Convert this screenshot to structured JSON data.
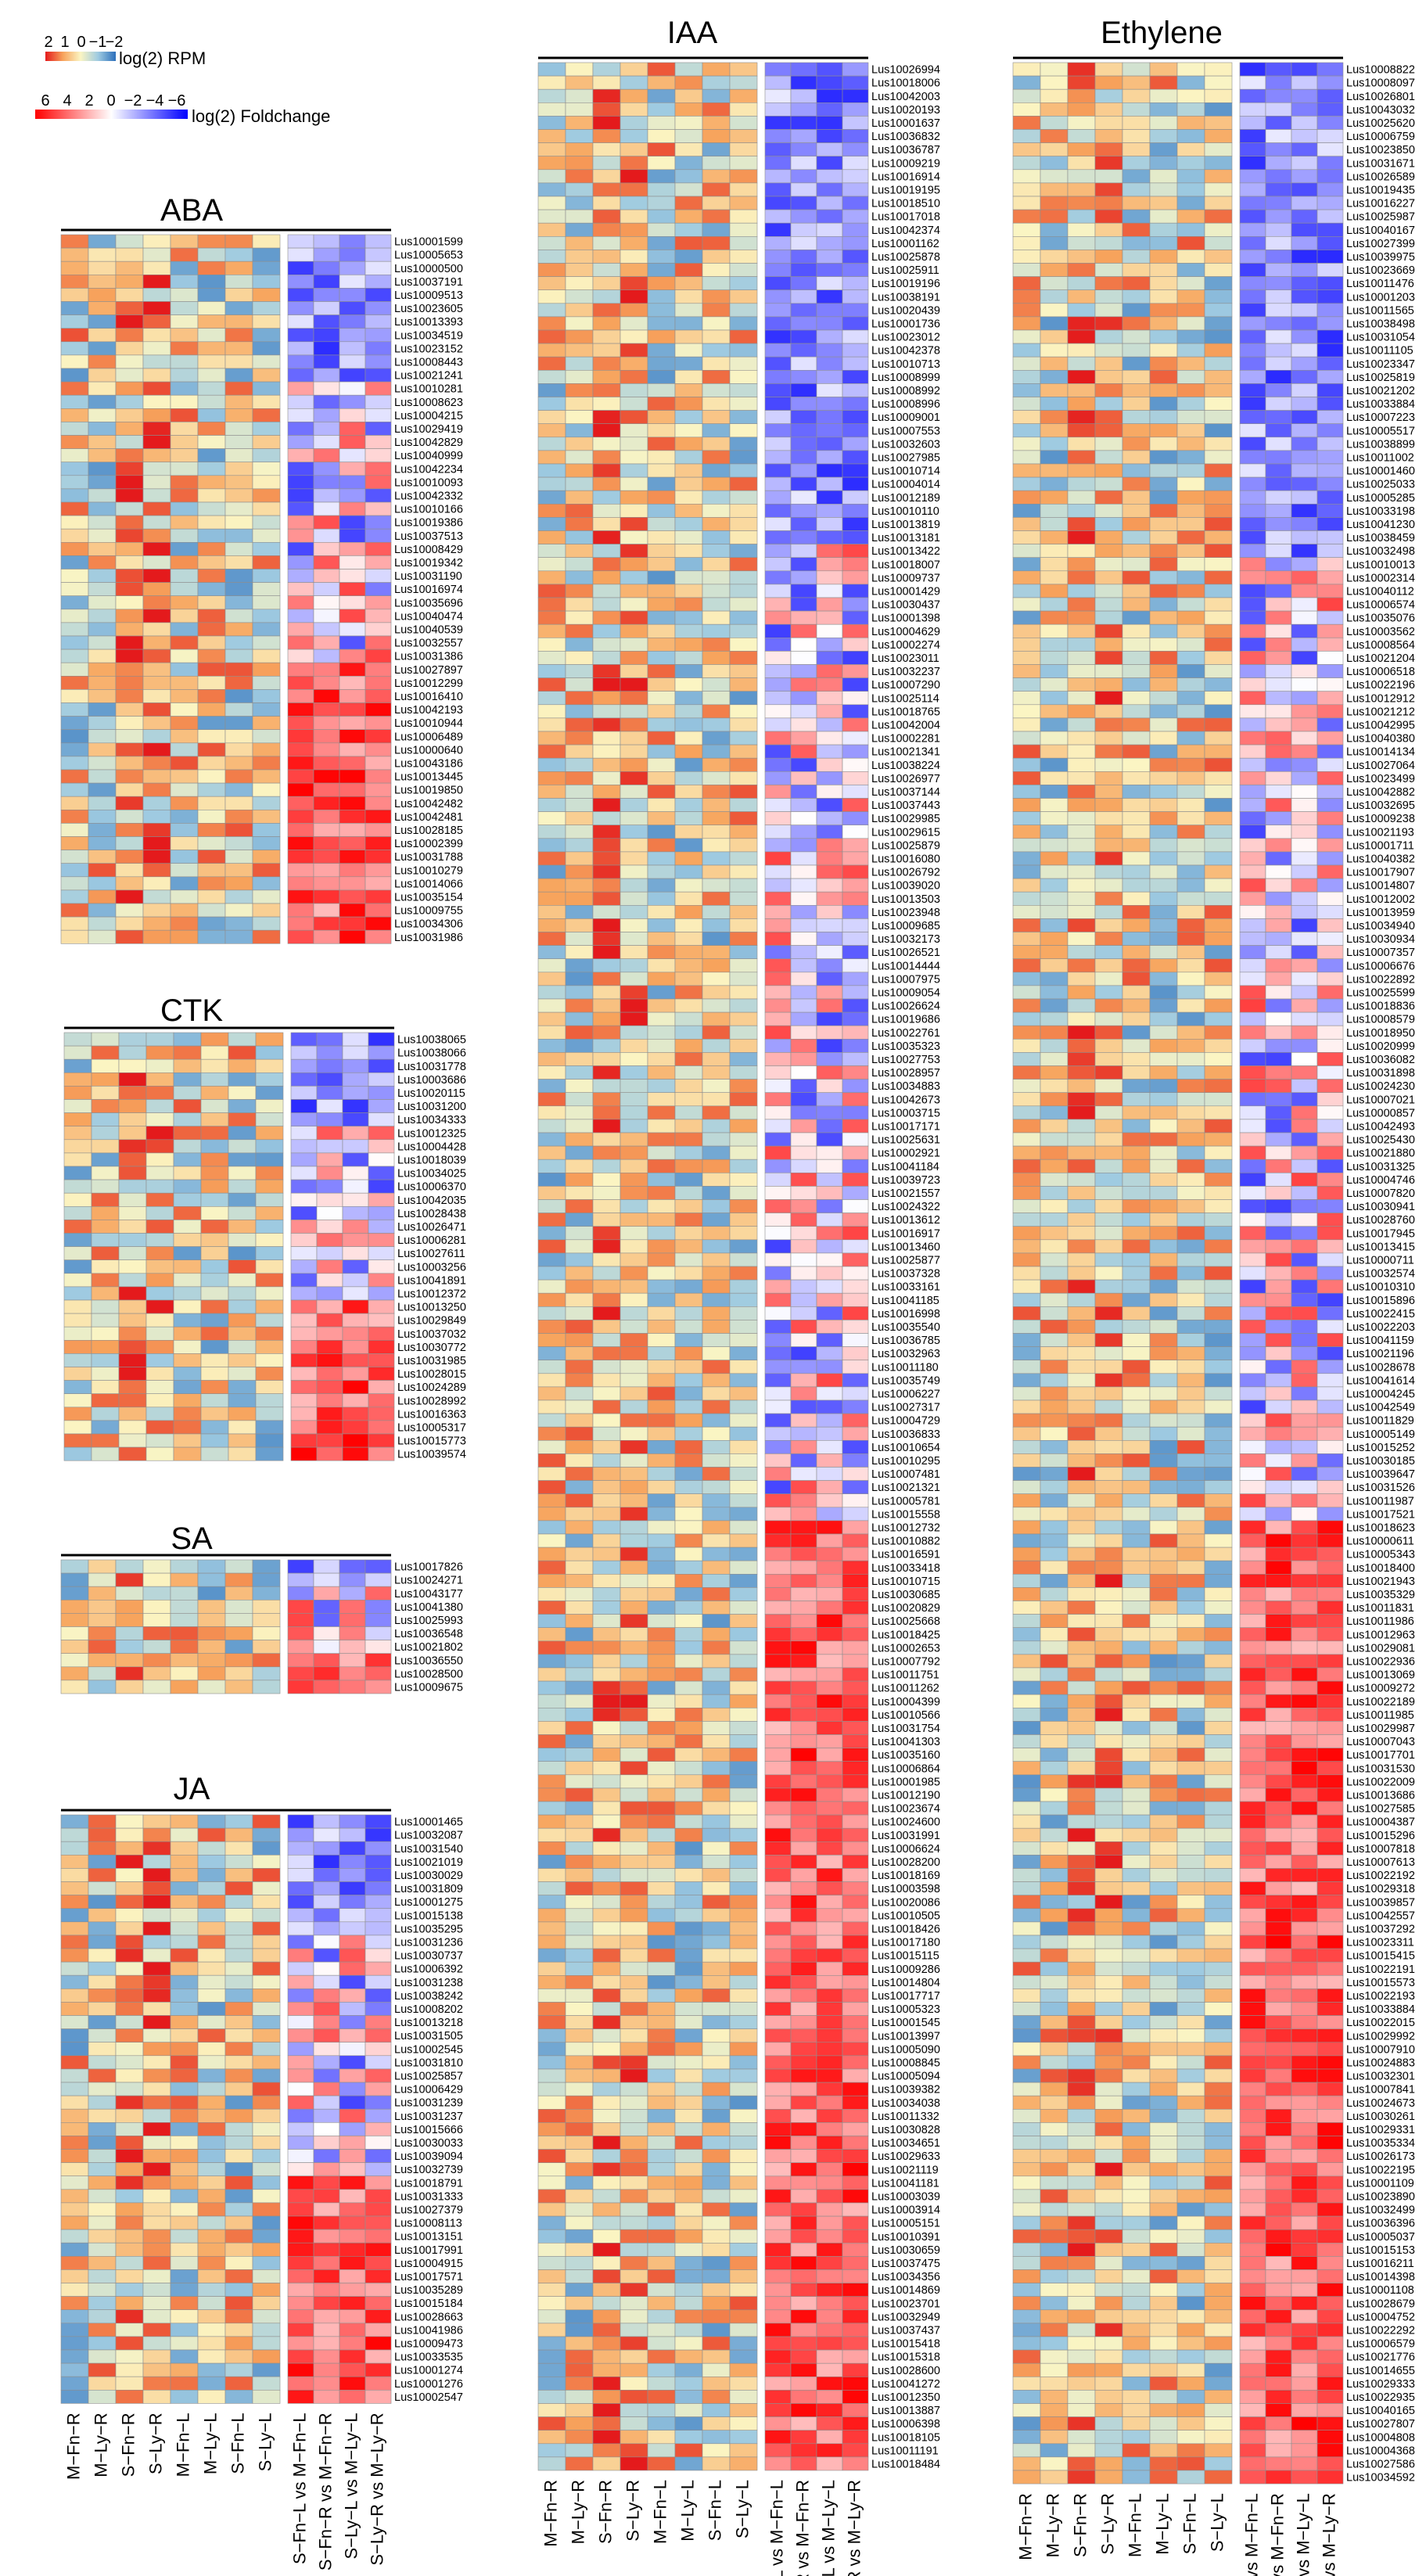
{
  "legend": {
    "rpm": {
      "ticks": [
        "2",
        "1",
        "0",
        "−1",
        "−2"
      ],
      "label": "log(2) RPM"
    },
    "foldchange": {
      "ticks": [
        "6",
        "4",
        "2",
        "0",
        "−2",
        "−4",
        "−6"
      ],
      "label": "log(2) Foldchange"
    }
  },
  "chart_data": [
    {
      "type": "heatmap",
      "title": "ABA",
      "expression_columns": [
        "M−Fn−R",
        "M−Ly−R",
        "S−Fn−R",
        "S−Ly−R",
        "M−Fn−L",
        "M−Ly−L",
        "S−Fn−L",
        "S−Ly−L"
      ],
      "foldchange_columns": [
        "S−Fn−L vs M−Fn−L",
        "S−Fn−R vs M−Fn−R",
        "S−Ly−L vs M−Ly−L",
        "S−Ly−R vs M−Ly−R"
      ],
      "rows": [
        "Lus10001599",
        "Lus10005653",
        "Lus10000500",
        "Lus10037191",
        "Lus10009513",
        "Lus10023605",
        "Lus10013393",
        "Lus10034519",
        "Lus10023152",
        "Lus10008443",
        "Lus10021241",
        "Lus10010281",
        "Lus10008623",
        "Lus10004215",
        "Lus10029419",
        "Lus10042829",
        "Lus10040999",
        "Lus10042234",
        "Lus10010093",
        "Lus10042332",
        "Lus10010166",
        "Lus10019386",
        "Lus10037513",
        "Lus10008429",
        "Lus10019342",
        "Lus10031190",
        "Lus10016974",
        "Lus10035696",
        "Lus10040474",
        "Lus10040539",
        "Lus10032557",
        "Lus10031386",
        "Lus10027897",
        "Lus10012299",
        "Lus10016410",
        "Lus10042193",
        "Lus10010944",
        "Lus10006489",
        "Lus10000640",
        "Lus10043186",
        "Lus10013445",
        "Lus10019850",
        "Lus10042482",
        "Lus10042481",
        "Lus10028185",
        "Lus10002399",
        "Lus10031788",
        "Lus10010279",
        "Lus10014066",
        "Lus10035154",
        "Lus10009755",
        "Lus10034306",
        "Lus10031986"
      ]
    },
    {
      "type": "heatmap",
      "title": "CTK",
      "expression_columns": [
        "M−Fn−R",
        "M−Ly−R",
        "S−Fn−R",
        "S−Ly−R",
        "M−Fn−L",
        "M−Ly−L",
        "S−Fn−L",
        "S−Ly−L"
      ],
      "foldchange_columns": [
        "S−Fn−L vs M−Fn−L",
        "S−Fn−R vs M−Fn−R",
        "S−Ly−L vs M−Ly−L",
        "S−Ly−R vs M−Ly−R"
      ],
      "rows": [
        "Lus10038065",
        "Lus10038066",
        "Lus10031778",
        "Lus10003686",
        "Lus10020115",
        "Lus10031200",
        "Lus10034333",
        "Lus10012325",
        "Lus10004428",
        "Lus10018039",
        "Lus10034025",
        "Lus10006370",
        "Lus10042035",
        "Lus10028438",
        "Lus10026471",
        "Lus10006281",
        "Lus10027611",
        "Lus10003256",
        "Lus10041891",
        "Lus10012372",
        "Lus10013250",
        "Lus10029849",
        "Lus10037032",
        "Lus10030772",
        "Lus10031985",
        "Lus10028015",
        "Lus10024289",
        "Lus10028992",
        "Lus10016363",
        "Lus10005317",
        "Lus10015773",
        "Lus10039574"
      ]
    },
    {
      "type": "heatmap",
      "title": "SA",
      "expression_columns": [
        "M−Fn−R",
        "M−Ly−R",
        "S−Fn−R",
        "S−Ly−R",
        "M−Fn−L",
        "M−Ly−L",
        "S−Fn−L",
        "S−Ly−L"
      ],
      "foldchange_columns": [
        "S−Fn−L vs M−Fn−L",
        "S−Fn−R vs M−Fn−R",
        "S−Ly−L vs M−Ly−L",
        "S−Ly−R vs M−Ly−R"
      ],
      "rows": [
        "Lus10017826",
        "Lus10024271",
        "Lus10043177",
        "Lus10041380",
        "Lus10025993",
        "Lus10036548",
        "Lus10021802",
        "Lus10036550",
        "Lus10028500",
        "Lus10009675"
      ]
    },
    {
      "type": "heatmap",
      "title": "JA",
      "expression_columns": [
        "M−Fn−R",
        "M−Ly−R",
        "S−Fn−R",
        "S−Ly−R",
        "M−Fn−L",
        "M−Ly−L",
        "S−Fn−L",
        "S−Ly−L"
      ],
      "foldchange_columns": [
        "S−Fn−L vs M−Fn−L",
        "S−Fn−R vs M−Fn−R",
        "S−Ly−L vs M−Ly−L",
        "S−Ly−R vs M−Ly−R"
      ],
      "rows": [
        "Lus10001465",
        "Lus10032087",
        "Lus10031540",
        "Lus10021019",
        "Lus10030029",
        "Lus10031809",
        "Lus10001275",
        "Lus10015138",
        "Lus10035295",
        "Lus10031236",
        "Lus10030737",
        "Lus10006392",
        "Lus10031238",
        "Lus10038242",
        "Lus10008202",
        "Lus10013218",
        "Lus10031505",
        "Lus10002545",
        "Lus10031810",
        "Lus10025857",
        "Lus10006429",
        "Lus10031239",
        "Lus10031237",
        "Lus10015666",
        "Lus10030033",
        "Lus10039094",
        "Lus10032739",
        "Lus10018791",
        "Lus10031333",
        "Lus10027379",
        "Lus10008113",
        "Lus10013151",
        "Lus10017991",
        "Lus10004915",
        "Lus10017571",
        "Lus10035289",
        "Lus10015184",
        "Lus10028663",
        "Lus10041986",
        "Lus10009473",
        "Lus10033535",
        "Lus10001274",
        "Lus10001276",
        "Lus10002547"
      ]
    },
    {
      "type": "heatmap",
      "title": "IAA",
      "expression_columns": [
        "M−Fn−R",
        "M−Ly−R",
        "S−Fn−R",
        "S−Ly−R",
        "M−Fn−L",
        "M−Ly−L",
        "S−Fn−L",
        "S−Ly−L"
      ],
      "foldchange_columns": [
        "S−Fn−L vs M−Fn−L",
        "S−Fn−R vs M−Fn−R",
        "S−Ly−L vs M−Ly−L",
        "S−Ly−R vs M−Ly−R"
      ],
      "rows": [
        "Lus10026994",
        "Lus10018006",
        "Lus10042003",
        "Lus10020193",
        "Lus10001637",
        "Lus10036832",
        "Lus10036787",
        "Lus10009219",
        "Lus10016914",
        "Lus10019195",
        "Lus10018510",
        "Lus10017018",
        "Lus10042374",
        "Lus10001162",
        "Lus10025878",
        "Lus10025911",
        "Lus10019196",
        "Lus10038191",
        "Lus10020439",
        "Lus10001736",
        "Lus10023012",
        "Lus10042378",
        "Lus10010713",
        "Lus10008999",
        "Lus10008992",
        "Lus10008996",
        "Lus10009001",
        "Lus10007553",
        "Lus10032603",
        "Lus10027985",
        "Lus10010714",
        "Lus10004014",
        "Lus10012189",
        "Lus10010110",
        "Lus10013819",
        "Lus10013181",
        "Lus10013422",
        "Lus10018007",
        "Lus10009737",
        "Lus10001429",
        "Lus10030437",
        "Lus10001398",
        "Lus10004629",
        "Lus10002274",
        "Lus10023011",
        "Lus10032237",
        "Lus10007290",
        "Lus10025114",
        "Lus10018765",
        "Lus10042004",
        "Lus10002281",
        "Lus10021341",
        "Lus10038224",
        "Lus10026977",
        "Lus10037144",
        "Lus10037443",
        "Lus10029985",
        "Lus10029615",
        "Lus10025879",
        "Lus10016080",
        "Lus10026792",
        "Lus10039020",
        "Lus10013503",
        "Lus10023948",
        "Lus10009685",
        "Lus10032173",
        "Lus10026521",
        "Lus10014444",
        "Lus10007975",
        "Lus10009054",
        "Lus10026624",
        "Lus10019686",
        "Lus10022761",
        "Lus10035323",
        "Lus10027753",
        "Lus10028957",
        "Lus10034883",
        "Lus10042673",
        "Lus10003715",
        "Lus10017171",
        "Lus10025631",
        "Lus10002921",
        "Lus10041184",
        "Lus10039723",
        "Lus10021557",
        "Lus10024322",
        "Lus10013612",
        "Lus10016917",
        "Lus10013460",
        "Lus10025877",
        "Lus10037328",
        "Lus10033161",
        "Lus10041185",
        "Lus10016998",
        "Lus10035540",
        "Lus10036785",
        "Lus10032963",
        "Lus10011180",
        "Lus10035749",
        "Lus10006227",
        "Lus10027317",
        "Lus10004729",
        "Lus10036833",
        "Lus10010654",
        "Lus10010295",
        "Lus10007481",
        "Lus10021321",
        "Lus10005781",
        "Lus10015558",
        "Lus10012732",
        "Lus10010882",
        "Lus10016591",
        "Lus10033418",
        "Lus10010715",
        "Lus10030685",
        "Lus10020829",
        "Lus10025668",
        "Lus10018425",
        "Lus10002653",
        "Lus10007792",
        "Lus10011751",
        "Lus10011262",
        "Lus10004399",
        "Lus10010566",
        "Lus10031754",
        "Lus10041303",
        "Lus10035160",
        "Lus10006864",
        "Lus10001985",
        "Lus10012190",
        "Lus10023674",
        "Lus10024600",
        "Lus10031991",
        "Lus10006624",
        "Lus10028200",
        "Lus10018169",
        "Lus10003598",
        "Lus10020086",
        "Lus10010505",
        "Lus10018426",
        "Lus10017180",
        "Lus10015115",
        "Lus10009286",
        "Lus10014804",
        "Lus10017717",
        "Lus10005323",
        "Lus10001545",
        "Lus10013997",
        "Lus10005090",
        "Lus10008845",
        "Lus10005094",
        "Lus10039382",
        "Lus10034038",
        "Lus10011332",
        "Lus10030828",
        "Lus10034651",
        "Lus10029633",
        "Lus10021119",
        "Lus10041181",
        "Lus10003039",
        "Lus10003914",
        "Lus10005151",
        "Lus10010391",
        "Lus10030659",
        "Lus10037475",
        "Lus10034356",
        "Lus10014869",
        "Lus10023701",
        "Lus10032949",
        "Lus10037437",
        "Lus10015418",
        "Lus10015318",
        "Lus10028600",
        "Lus10041272",
        "Lus10012350",
        "Lus10013887",
        "Lus10006398",
        "Lus10018105",
        "Lus10011191",
        "Lus10018484"
      ]
    },
    {
      "type": "heatmap",
      "title": "Ethylene",
      "expression_columns": [
        "M−Fn−R",
        "M−Ly−R",
        "S−Fn−R",
        "S−Ly−R",
        "M−Fn−L",
        "M−Ly−L",
        "S−Fn−L",
        "S−Ly−L"
      ],
      "foldchange_columns": [
        "S−Fn−L vs M−Fn−L",
        "S−Fn−R vs M−Fn−R",
        "S−Ly−L vs M−Ly−L",
        "S−Ly−R vs M−Ly−R"
      ],
      "rows": [
        "Lus10008822",
        "Lus10008097",
        "Lus10026801",
        "Lus10043032",
        "Lus10025620",
        "Lus10006759",
        "Lus10023850",
        "Lus10031671",
        "Lus10026589",
        "Lus10019435",
        "Lus10016227",
        "Lus10025987",
        "Lus10040167",
        "Lus10027399",
        "Lus10039975",
        "Lus10023669",
        "Lus10011476",
        "Lus10001203",
        "Lus10011565",
        "Lus10038498",
        "Lus10031054",
        "Lus10011105",
        "Lus10023347",
        "Lus10025819",
        "Lus10021202",
        "Lus10033884",
        "Lus10007223",
        "Lus10005517",
        "Lus10038899",
        "Lus10011002",
        "Lus10001460",
        "Lus10025033",
        "Lus10005285",
        "Lus10033198",
        "Lus10041230",
        "Lus10038459",
        "Lus10032498",
        "Lus10010013",
        "Lus10002314",
        "Lus10040112",
        "Lus10006574",
        "Lus10035076",
        "Lus10003562",
        "Lus10008564",
        "Lus10021204",
        "Lus10006518",
        "Lus10022196",
        "Lus10012912",
        "Lus10021212",
        "Lus10042995",
        "Lus10040380",
        "Lus10014134",
        "Lus10027064",
        "Lus10023499",
        "Lus10042882",
        "Lus10032695",
        "Lus10009238",
        "Lus10021193",
        "Lus10001711",
        "Lus10040382",
        "Lus10017907",
        "Lus10014807",
        "Lus10012002",
        "Lus10013959",
        "Lus10034940",
        "Lus10030934",
        "Lus10007357",
        "Lus10006676",
        "Lus10022892",
        "Lus10025599",
        "Lus10018836",
        "Lus10008579",
        "Lus10018950",
        "Lus10020999",
        "Lus10036082",
        "Lus10031898",
        "Lus10024230",
        "Lus10007021",
        "Lus10000857",
        "Lus10042493",
        "Lus10025430",
        "Lus10021880",
        "Lus10031325",
        "Lus10004746",
        "Lus10007820",
        "Lus10030941",
        "Lus10028760",
        "Lus10017945",
        "Lus10013415",
        "Lus10000711",
        "Lus10032574",
        "Lus10010310",
        "Lus10015896",
        "Lus10022415",
        "Lus10022203",
        "Lus10041159",
        "Lus10021196",
        "Lus10028678",
        "Lus10041614",
        "Lus10004245",
        "Lus10042549",
        "Lus10011829",
        "Lus10005149",
        "Lus10015252",
        "Lus10030185",
        "Lus10039647",
        "Lus10031526",
        "Lus10011987",
        "Lus10017521",
        "Lus10018623",
        "Lus10000611",
        "Lus10005343",
        "Lus10018400",
        "Lus10021943",
        "Lus10035329",
        "Lus10011831",
        "Lus10011986",
        "Lus10012963",
        "Lus10029081",
        "Lus10022936",
        "Lus10013069",
        "Lus10009272",
        "Lus10022189",
        "Lus10011985",
        "Lus10029987",
        "Lus10007043",
        "Lus10017701",
        "Lus10031530",
        "Lus10022009",
        "Lus10013686",
        "Lus10027585",
        "Lus10004387",
        "Lus10015296",
        "Lus10007818",
        "Lus10007613",
        "Lus10022192",
        "Lus10029318",
        "Lus10039857",
        "Lus10042557",
        "Lus10037292",
        "Lus10023311",
        "Lus10015415",
        "Lus10022191",
        "Lus10015573",
        "Lus10022193",
        "Lus10033884",
        "Lus10022015",
        "Lus10029992",
        "Lus10007910",
        "Lus10024883",
        "Lus10032301",
        "Lus10007841",
        "Lus10024673",
        "Lus10030261",
        "Lus10029331",
        "Lus10035334",
        "Lus10026173",
        "Lus10022195",
        "Lus10001109",
        "Lus10023890",
        "Lus10032499",
        "Lus10036396",
        "Lus10005037",
        "Lus10015153",
        "Lus10016211",
        "Lus10014398",
        "Lus10001108",
        "Lus10028679",
        "Lus10004752",
        "Lus10022292",
        "Lus10006579",
        "Lus10021776",
        "Lus10014655",
        "Lus10029333",
        "Lus10022935",
        "Lus10040165",
        "Lus10027807",
        "Lus10004808",
        "Lus10004368",
        "Lus10027586",
        "Lus10034592"
      ]
    }
  ]
}
